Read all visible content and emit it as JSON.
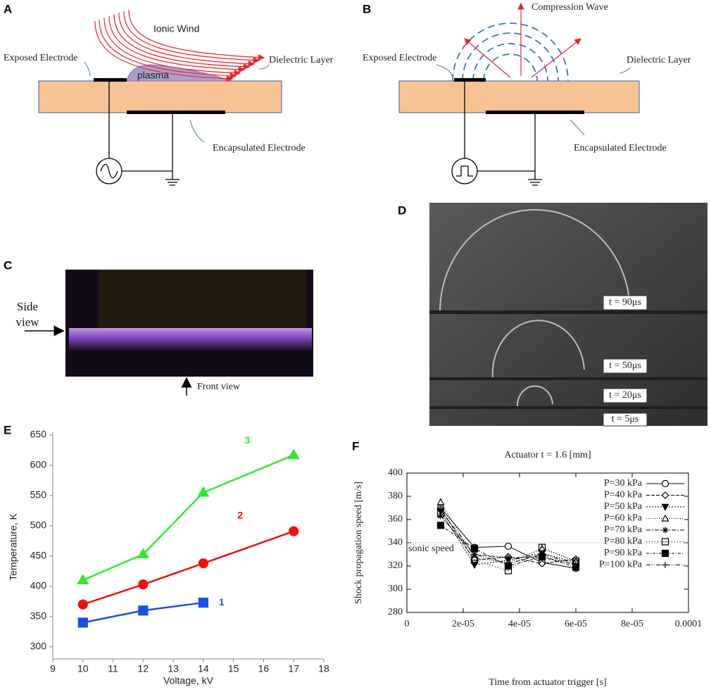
{
  "panels": {
    "A": {
      "label": "A",
      "ionic_wind": "Ionic Wind",
      "exposed_electrode": "Exposed Electrode",
      "plasma": "plasma",
      "dielectric_layer": "Dielectric Layer",
      "encapsulated_electrode": "Encapsulated Electrode"
    },
    "B": {
      "label": "B",
      "compression_wave": "Compression Wave",
      "exposed_electrode": "Exposed Electrode",
      "dielectric_layer": "Dielectric Layer",
      "encapsulated_electrode": "Encapsulated Electrode"
    },
    "C": {
      "label": "C",
      "side_view": "Side view",
      "front_view": "Front view"
    },
    "D": {
      "label": "D",
      "times": [
        "t = 90μs",
        "t = 50μs",
        "t = 20μs",
        "t = 5μs"
      ]
    }
  },
  "chart_data": [
    {
      "type": "line",
      "panel_label": "E",
      "xlabel": "Voltage, kV",
      "ylabel": "Temperature, K",
      "xlim": [
        9,
        18
      ],
      "xticks": [
        9,
        10,
        11,
        12,
        13,
        14,
        15,
        16,
        17,
        18
      ],
      "ylim": [
        280,
        650
      ],
      "yticks": [
        300,
        350,
        400,
        450,
        500,
        550,
        600,
        650
      ],
      "series": [
        {
          "name": "1",
          "color": "#1e4fe0",
          "marker": "square",
          "x": [
            10,
            12,
            14
          ],
          "values": [
            340,
            360,
            373
          ]
        },
        {
          "name": "2",
          "color": "#ee1111",
          "marker": "circle",
          "x": [
            10,
            12,
            14,
            17
          ],
          "values": [
            370,
            403,
            438,
            491
          ]
        },
        {
          "name": "3",
          "color": "#33e633",
          "marker": "triangle",
          "x": [
            10,
            12,
            14,
            17
          ],
          "values": [
            410,
            453,
            555,
            617
          ]
        }
      ]
    },
    {
      "type": "line",
      "panel_label": "F",
      "title": "Actuator t = 1.6 [mm]",
      "xlabel": "Time from actuator trigger [s]",
      "ylabel": "Shock propagation speed [m/s]",
      "xlim": [
        0,
        0.0001
      ],
      "xticks": [
        0,
        {
          "value": 2e-05,
          "label": "2e-05"
        },
        {
          "value": 4e-05,
          "label": "4e-05"
        },
        {
          "value": 6e-05,
          "label": "6e-05"
        },
        {
          "value": 8e-05,
          "label": "8e-05"
        },
        0.0001
      ],
      "ylim": [
        280,
        400
      ],
      "yticks": [
        280,
        300,
        320,
        340,
        360,
        380,
        400
      ],
      "annotation": {
        "value": 340,
        "label": "sonic speed"
      },
      "legend": "upper right",
      "x": [
        1.2e-05,
        2.4e-05,
        3.6e-05,
        4.8e-05,
        6e-05
      ],
      "series": [
        {
          "name": "P=30 kPa",
          "color": "#000000",
          "marker": "circle",
          "values": [
            370,
            336,
            337,
            323,
            318
          ]
        },
        {
          "name": "P=40 kPa",
          "color": "#000000",
          "marker": "diamond",
          "values": [
            369,
            325,
            328,
            322,
            326
          ]
        },
        {
          "name": "P=50 kPa",
          "color": "#000000",
          "marker": "triangle-down",
          "values": [
            367,
            321,
            325,
            331,
            323
          ]
        },
        {
          "name": "P=60 kPa",
          "color": "#000000",
          "marker": "triangle-open",
          "values": [
            375,
            327,
            323,
            335,
            324
          ]
        },
        {
          "name": "P=70 kPa",
          "color": "#000000",
          "marker": "asterisk",
          "values": [
            363,
            330,
            327,
            328,
            321
          ]
        },
        {
          "name": "P=80 kPa",
          "color": "#000000",
          "marker": "square-dot",
          "values": [
            365,
            325,
            316,
            336,
            324
          ]
        },
        {
          "name": "P=90 kPa",
          "color": "#000000",
          "marker": "square",
          "values": [
            355,
            335,
            320,
            328,
            319
          ]
        },
        {
          "name": "P=100 kPa",
          "color": "#000000",
          "marker": "plus",
          "values": [
            368,
            330,
            322,
            330,
            322
          ]
        }
      ]
    }
  ]
}
